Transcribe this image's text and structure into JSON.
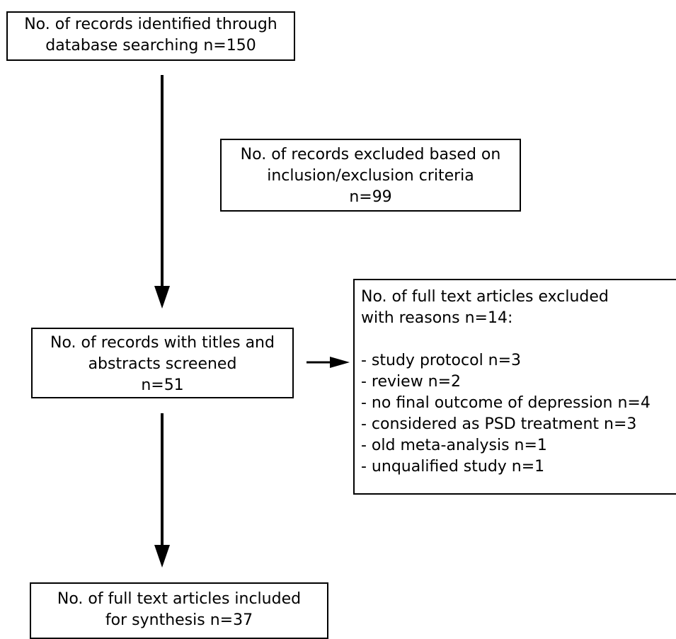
{
  "boxes": {
    "identified": {
      "lines": [
        "No. of records identified through",
        "database searching n=150"
      ]
    },
    "excluded_criteria": {
      "lines": [
        "No. of records excluded based on",
        "inclusion/exclusion criteria",
        "n=99"
      ]
    },
    "screened": {
      "lines": [
        "No. of records with titles and",
        "abstracts screened",
        "n=51"
      ]
    },
    "fulltext_excluded": {
      "heading_lines": [
        "No. of full text articles excluded",
        "with reasons n=14:"
      ],
      "reasons": [
        "- study protocol n=3",
        "- review n=2",
        "- no final outcome of depression n=4",
        "- considered as PSD treatment n=3",
        "- old meta-analysis n=1",
        "- unqualified study n=1"
      ]
    },
    "included": {
      "lines": [
        "No. of full text articles included",
        "for synthesis n=37"
      ]
    }
  },
  "colors": {
    "stroke": "#000000",
    "background": "#ffffff"
  }
}
